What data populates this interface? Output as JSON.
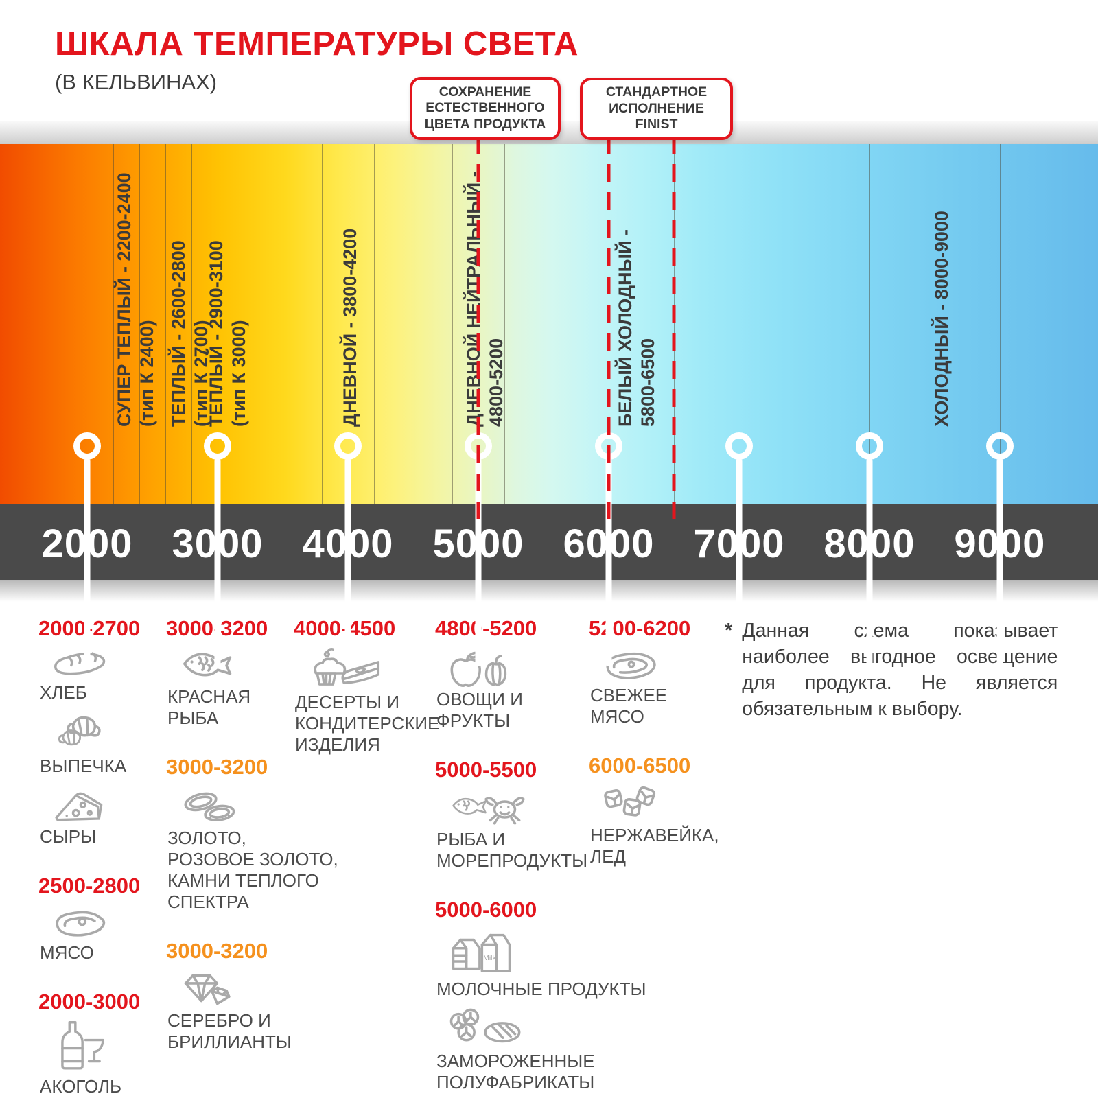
{
  "title": "ШКАЛА ТЕМПЕРАТУРЫ СВЕТА",
  "subtitle": "(В КЕЛЬВИНАХ)",
  "colors": {
    "accent_red": "#e3151d",
    "accent_orange": "#f5911e",
    "axis_bar_grey": "#4a4a4a",
    "zone_text": "#3b3b3b",
    "legend_text": "#4c4c4c",
    "icon_grey": "#a9a9a9"
  },
  "callouts": {
    "natural_color": {
      "text": "СОХРАНЕНИЕ\nЕСТЕСТВЕННОГО\nЦВЕТА ПРОДУКТА"
    },
    "finist": {
      "text": "СТАНДАРТНОЕ\nИСПОЛНЕНИЕ\nFINIST"
    }
  },
  "scale": {
    "unit": "K",
    "ticks": [
      {
        "k": 2000,
        "label": "2000"
      },
      {
        "k": 3000,
        "label": "3000"
      },
      {
        "k": 4000,
        "label": "4000"
      },
      {
        "k": 5000,
        "label": "5000"
      },
      {
        "k": 6000,
        "label": "6000"
      },
      {
        "k": 7000,
        "label": "7000"
      },
      {
        "k": 8000,
        "label": "8000"
      },
      {
        "k": 9000,
        "label": "9000"
      }
    ],
    "boundaries_k": [
      2200,
      2400,
      2600,
      2800,
      2900,
      3100,
      3800,
      4200,
      4800,
      5200,
      5800,
      6500,
      8000,
      9000
    ],
    "finist_lines_k": [
      5000,
      6000,
      6500
    ],
    "zones": [
      {
        "label": "СУПЕР ТЕПЛЫЙ - 2200-2400",
        "sub": "(тип К 2400)",
        "k": 2200
      },
      {
        "label": "ТЕПЛЫЙ - 2600-2800",
        "sub": "(тип К 2700)",
        "k": 2615
      },
      {
        "label": "ТЕПЛЫЙ - 2900-3100",
        "sub": "(тип К 3000)",
        "k": 2905
      },
      {
        "label": "ДНЕВНОЙ - 3800-4200",
        "sub": "",
        "k": 3930
      },
      {
        "label": "ДНЕВНОЙ НЕЙТРАЛЬНЫЙ -",
        "sub": "4800-5200",
        "k": 4880
      },
      {
        "label": "БЕЛЫЙ ХОЛОДНЫЙ -",
        "sub": "5800-6500",
        "k": 6040
      },
      {
        "label": "ХОЛОДНЫЙ - 8000-9000",
        "sub": "",
        "k": 8470
      }
    ],
    "gradient_stops": [
      {
        "pct": 0,
        "color": "#f14c00"
      },
      {
        "pct": 7,
        "color": "#fb7a00"
      },
      {
        "pct": 14,
        "color": "#ffa300"
      },
      {
        "pct": 20,
        "color": "#ffc303"
      },
      {
        "pct": 26,
        "color": "#ffd91d"
      },
      {
        "pct": 31,
        "color": "#ffe94e"
      },
      {
        "pct": 36,
        "color": "#fdf27d"
      },
      {
        "pct": 40,
        "color": "#f3f5a4"
      },
      {
        "pct": 44,
        "color": "#e8f6c6"
      },
      {
        "pct": 47,
        "color": "#def7e0"
      },
      {
        "pct": 50,
        "color": "#d5f8ef"
      },
      {
        "pct": 54,
        "color": "#c5f5f6"
      },
      {
        "pct": 59,
        "color": "#b2f1f8"
      },
      {
        "pct": 64,
        "color": "#a0eaf8"
      },
      {
        "pct": 71,
        "color": "#8fe1f7"
      },
      {
        "pct": 79,
        "color": "#81d6f4"
      },
      {
        "pct": 87,
        "color": "#75cbf0"
      },
      {
        "pct": 94,
        "color": "#6dc3ee"
      },
      {
        "pct": 100,
        "color": "#66bbeb"
      }
    ]
  },
  "legend": {
    "columns": [
      {
        "groups": [
          {
            "range": "2000-2700",
            "style": "red",
            "items": [
              {
                "icon": "bread",
                "label": "ХЛЕБ"
              },
              {
                "icon": "croissant",
                "label": "ВЫПЕЧКА"
              },
              {
                "icon": "cheese",
                "label": "СЫРЫ"
              }
            ]
          },
          {
            "range": "2500-2800",
            "style": "red",
            "items": [
              {
                "icon": "meat",
                "label": "МЯСО"
              }
            ]
          },
          {
            "range": "2000-3000",
            "style": "red",
            "items": [
              {
                "icon": "alcohol",
                "label": "АКОГОЛЬ"
              }
            ]
          }
        ]
      },
      {
        "groups": [
          {
            "range": "3000-3200",
            "style": "red",
            "items": [
              {
                "icon": "fish",
                "label": "КРАСНАЯ\nРЫБА"
              }
            ]
          },
          {
            "range": "3000-3200",
            "style": "orange",
            "items": [
              {
                "icon": "rings",
                "label": "ЗОЛОТО,\nРОЗОВОЕ ЗОЛОТО,\nКАМНИ ТЕПЛОГО\nСПЕКТРА"
              }
            ]
          },
          {
            "range": "3000-3200",
            "style": "orange",
            "items": [
              {
                "icon": "diamond",
                "label": "СЕРЕБРО И\nБРИЛЛИАНТЫ"
              }
            ]
          }
        ]
      },
      {
        "groups": [
          {
            "range": "4000-4500",
            "style": "red",
            "items": [
              {
                "icon": "desserts",
                "label": "ДЕСЕРТЫ И\nКОНДИТЕРСКИЕ\nИЗДЕЛИЯ"
              }
            ]
          }
        ]
      },
      {
        "groups": [
          {
            "range": "4800-5200",
            "style": "red",
            "items": [
              {
                "icon": "produce",
                "label": "ОВОЩИ И\nФРУКТЫ"
              }
            ]
          },
          {
            "range": "5000-5500",
            "style": "red",
            "items": [
              {
                "icon": "seafood",
                "label": "РЫБА И\nМОРЕПРОДУКТЫ"
              }
            ]
          },
          {
            "range": "5000-6000",
            "style": "red",
            "items": [
              {
                "icon": "dairy",
                "label": "МОЛОЧНЫЕ ПРОДУКТЫ"
              },
              {
                "icon": "frozen",
                "label": "ЗАМОРОЖЕННЫЕ\nПОЛУФАБРИКАТЫ"
              }
            ]
          }
        ]
      },
      {
        "groups": [
          {
            "range": "5200-6200",
            "style": "red",
            "items": [
              {
                "icon": "fresh-meat",
                "label": "СВЕЖЕЕ\nМЯСО"
              }
            ]
          },
          {
            "range": "6000-6500",
            "style": "orange",
            "items": [
              {
                "icon": "ice-cubes",
                "label": "НЕРЖАВЕЙКА,\nЛЕД"
              }
            ]
          }
        ]
      }
    ]
  },
  "footnote": {
    "mark": "*",
    "text": "Данная схема показывает наиболее выгодное освещение для продукта. Не является обязательным к выбору."
  }
}
